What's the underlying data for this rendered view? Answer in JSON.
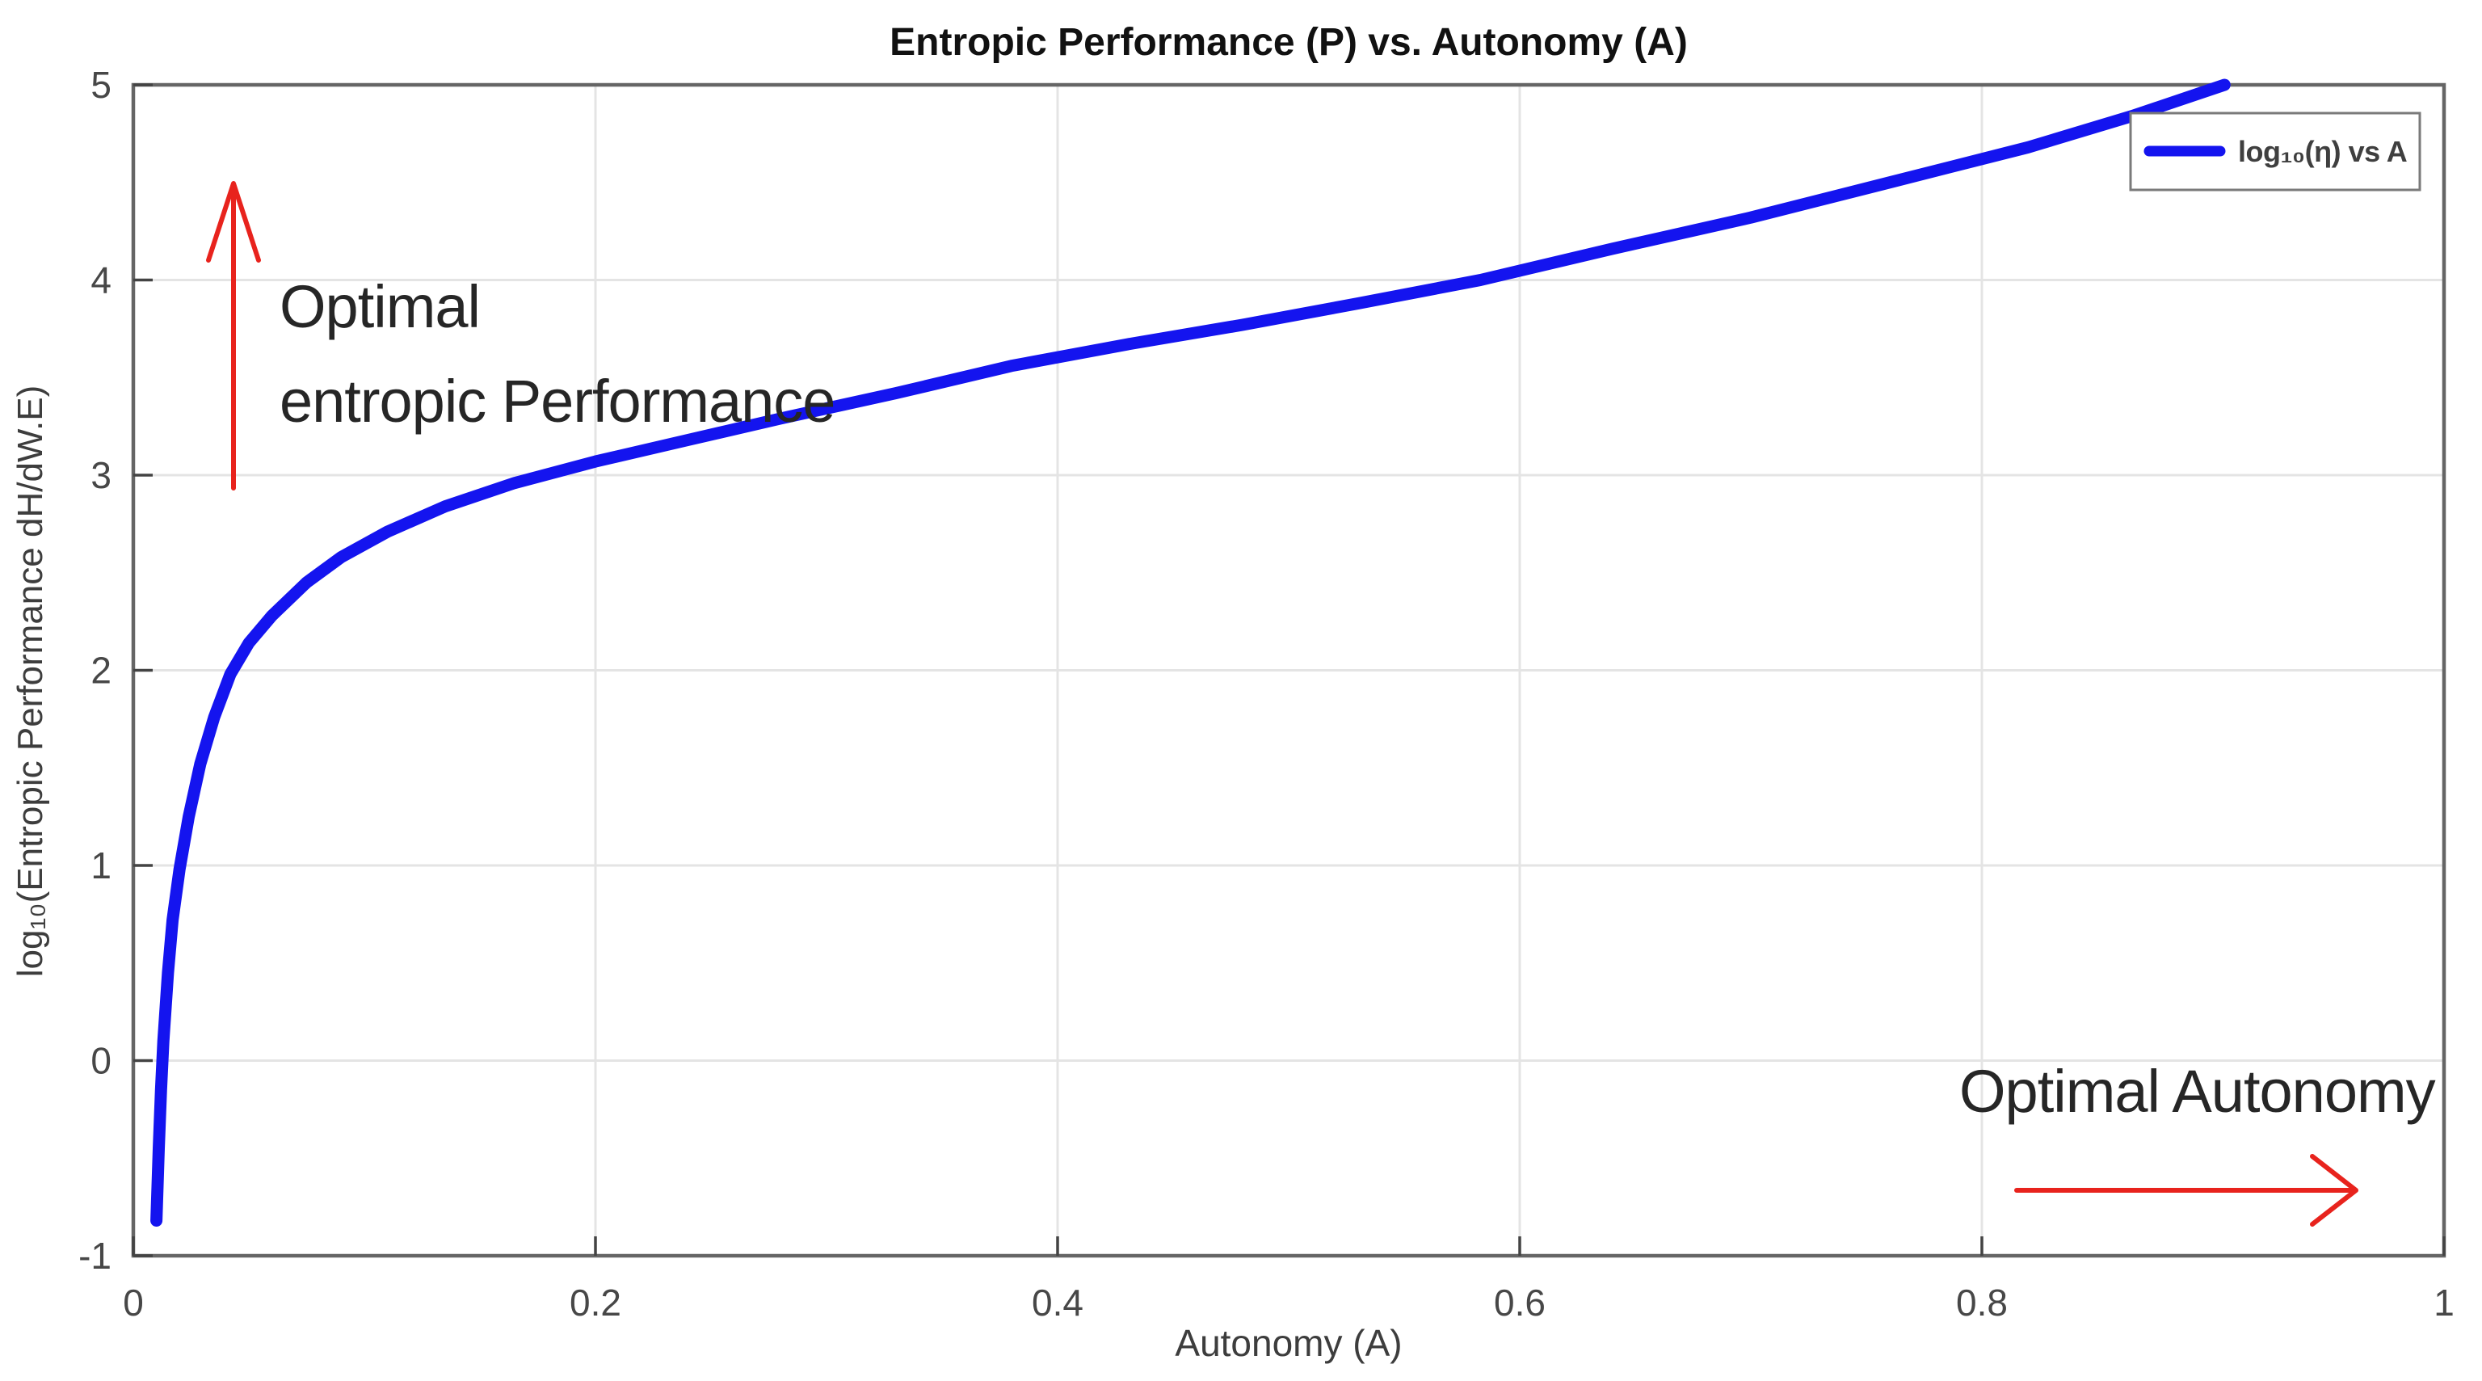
{
  "chart_data": {
    "type": "line",
    "title": "Entropic Performance (P) vs. Autonomy (A)",
    "xlabel": "Autonomy (A)",
    "ylabel": "log₁₀(Entropic Performance dH/dW.E)",
    "xlim": [
      0,
      1
    ],
    "ylim": [
      -1,
      5
    ],
    "x_ticks": [
      0,
      0.2,
      0.4,
      0.6,
      0.8,
      1
    ],
    "y_ticks": [
      -1,
      0,
      1,
      2,
      3,
      4,
      5
    ],
    "grid": true,
    "legend_position": "top-right",
    "series": [
      {
        "name": "log₁₀(η) vs A",
        "color": "#1414ef",
        "points": [
          [
            0.01,
            -0.82
          ],
          [
            0.011,
            -0.45
          ],
          [
            0.012,
            -0.15
          ],
          [
            0.013,
            0.1
          ],
          [
            0.015,
            0.45
          ],
          [
            0.017,
            0.72
          ],
          [
            0.02,
            0.98
          ],
          [
            0.024,
            1.25
          ],
          [
            0.029,
            1.52
          ],
          [
            0.035,
            1.76
          ],
          [
            0.042,
            1.98
          ],
          [
            0.05,
            2.14
          ],
          [
            0.06,
            2.28
          ],
          [
            0.075,
            2.45
          ],
          [
            0.09,
            2.58
          ],
          [
            0.11,
            2.71
          ],
          [
            0.135,
            2.84
          ],
          [
            0.165,
            2.96
          ],
          [
            0.2,
            3.07
          ],
          [
            0.24,
            3.18
          ],
          [
            0.28,
            3.29
          ],
          [
            0.33,
            3.42
          ],
          [
            0.38,
            3.56
          ],
          [
            0.43,
            3.67
          ],
          [
            0.48,
            3.77
          ],
          [
            0.53,
            3.88
          ],
          [
            0.583,
            4.0
          ],
          [
            0.64,
            4.16
          ],
          [
            0.7,
            4.32
          ],
          [
            0.76,
            4.5
          ],
          [
            0.82,
            4.68
          ],
          [
            0.865,
            4.84
          ],
          [
            0.905,
            5.0
          ]
        ]
      }
    ],
    "annotations": [
      {
        "id": "performance",
        "line1": "Optimal",
        "line2": "entropic Performance",
        "arrow_direction": "up"
      },
      {
        "id": "autonomy",
        "line1": "Optimal Autonomy",
        "arrow_direction": "right"
      }
    ]
  },
  "colors": {
    "curve": "#1414ef",
    "arrow": "#e8231d",
    "grid": "#e4e4e4",
    "axis_border": "#656565",
    "tick": "#434343",
    "background": "#ffffff"
  }
}
